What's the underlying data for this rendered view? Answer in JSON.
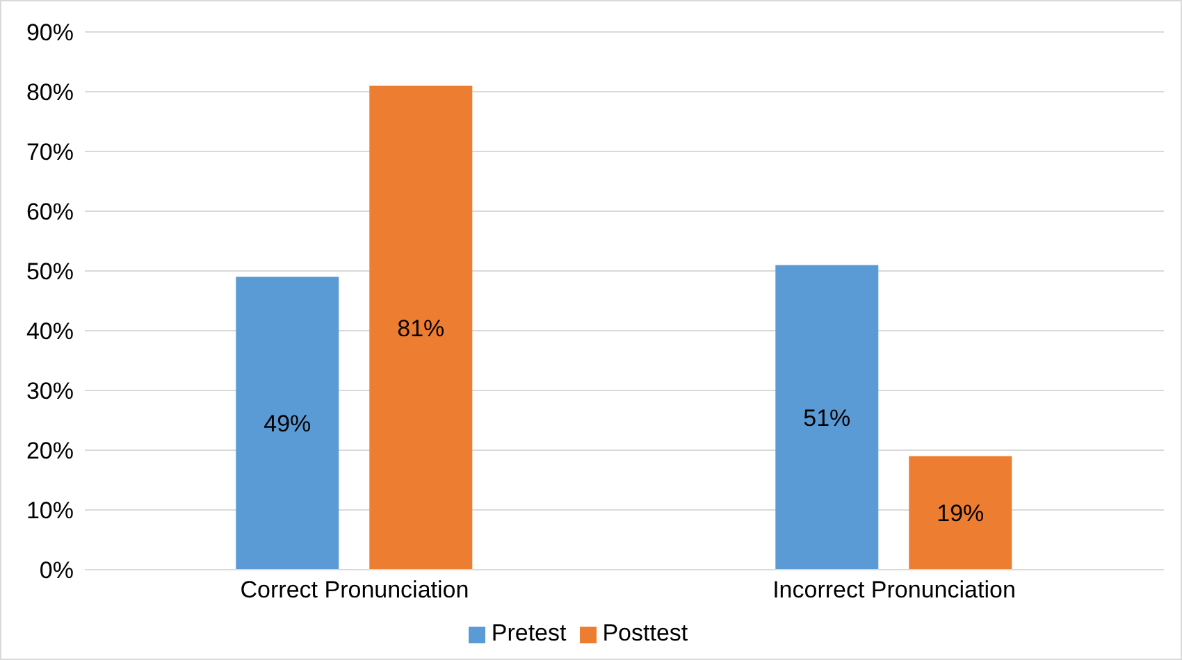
{
  "chart_data": {
    "type": "bar",
    "categories": [
      "Correct Pronunciation",
      "Incorrect Pronunciation"
    ],
    "series": [
      {
        "name": "Pretest",
        "color": "#5b9bd5",
        "values": [
          49,
          51
        ],
        "value_labels": [
          "49%",
          "51%"
        ]
      },
      {
        "name": "Posttest",
        "color": "#ed7d31",
        "values": [
          81,
          19
        ],
        "value_labels": [
          "81%",
          "19%"
        ]
      }
    ],
    "ylim": [
      0,
      90
    ],
    "yticks": [
      {
        "value": 0,
        "label": "0%"
      },
      {
        "value": 10,
        "label": "10%"
      },
      {
        "value": 20,
        "label": "20%"
      },
      {
        "value": 30,
        "label": "30%"
      },
      {
        "value": 40,
        "label": "40%"
      },
      {
        "value": 50,
        "label": "50%"
      },
      {
        "value": 60,
        "label": "60%"
      },
      {
        "value": 70,
        "label": "70%"
      },
      {
        "value": 80,
        "label": "80%"
      },
      {
        "value": 90,
        "label": "90%"
      }
    ],
    "grid": "y",
    "legend": "bottom"
  }
}
